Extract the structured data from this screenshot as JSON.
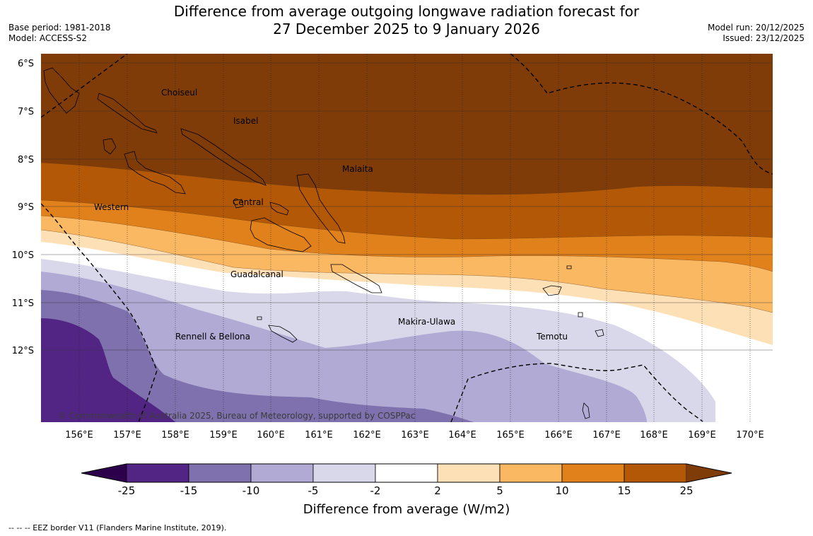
{
  "header": {
    "base_period": "Base period: 1981-2018",
    "model": "Model: ACCESS-S2",
    "title_line1": "Difference from average outgoing longwave radiation forecast for",
    "title_line2": "27 December 2025 to 9 January 2026",
    "model_run": "Model run: 20/12/2025",
    "issued": "Issued: 23/12/2025"
  },
  "map": {
    "lat_labels": [
      "6°S",
      "7°S",
      "8°S",
      "9°S",
      "10°S",
      "11°S",
      "12°S"
    ],
    "lon_labels": [
      "156°E",
      "157°E",
      "158°E",
      "159°E",
      "160°E",
      "161°E",
      "162°E",
      "163°E",
      "164°E",
      "165°E",
      "166°E",
      "167°E",
      "168°E",
      "169°E",
      "170°E"
    ],
    "regions": [
      "Choiseul",
      "Isabel",
      "Malaita",
      "Western",
      "Central",
      "Guadalcanal",
      "Makira-Ulawa",
      "Rennell & Bellona",
      "Temotu"
    ],
    "copyright": "© Commonwealth of Australia 2025, Bureau of Meteorology, supported by COSPPac"
  },
  "colorbar": {
    "ticks": [
      "-25",
      "-15",
      "-10",
      "-5",
      "-2",
      "2",
      "5",
      "10",
      "15",
      "25"
    ],
    "colors": [
      "#522585",
      "#7f71ad",
      "#b1aad4",
      "#d9d8eb",
      "#ffffff",
      "#fee0b7",
      "#fbb863",
      "#e1811b",
      "#b35807"
    ],
    "extend_low_color": "#2d004b",
    "extend_high_color": "#7f3b08",
    "title": "Difference from average (W/m2)"
  },
  "footer": {
    "eez_note": "--  --  -- EEZ border V11 (Flanders Marine Institute, 2019)."
  }
}
